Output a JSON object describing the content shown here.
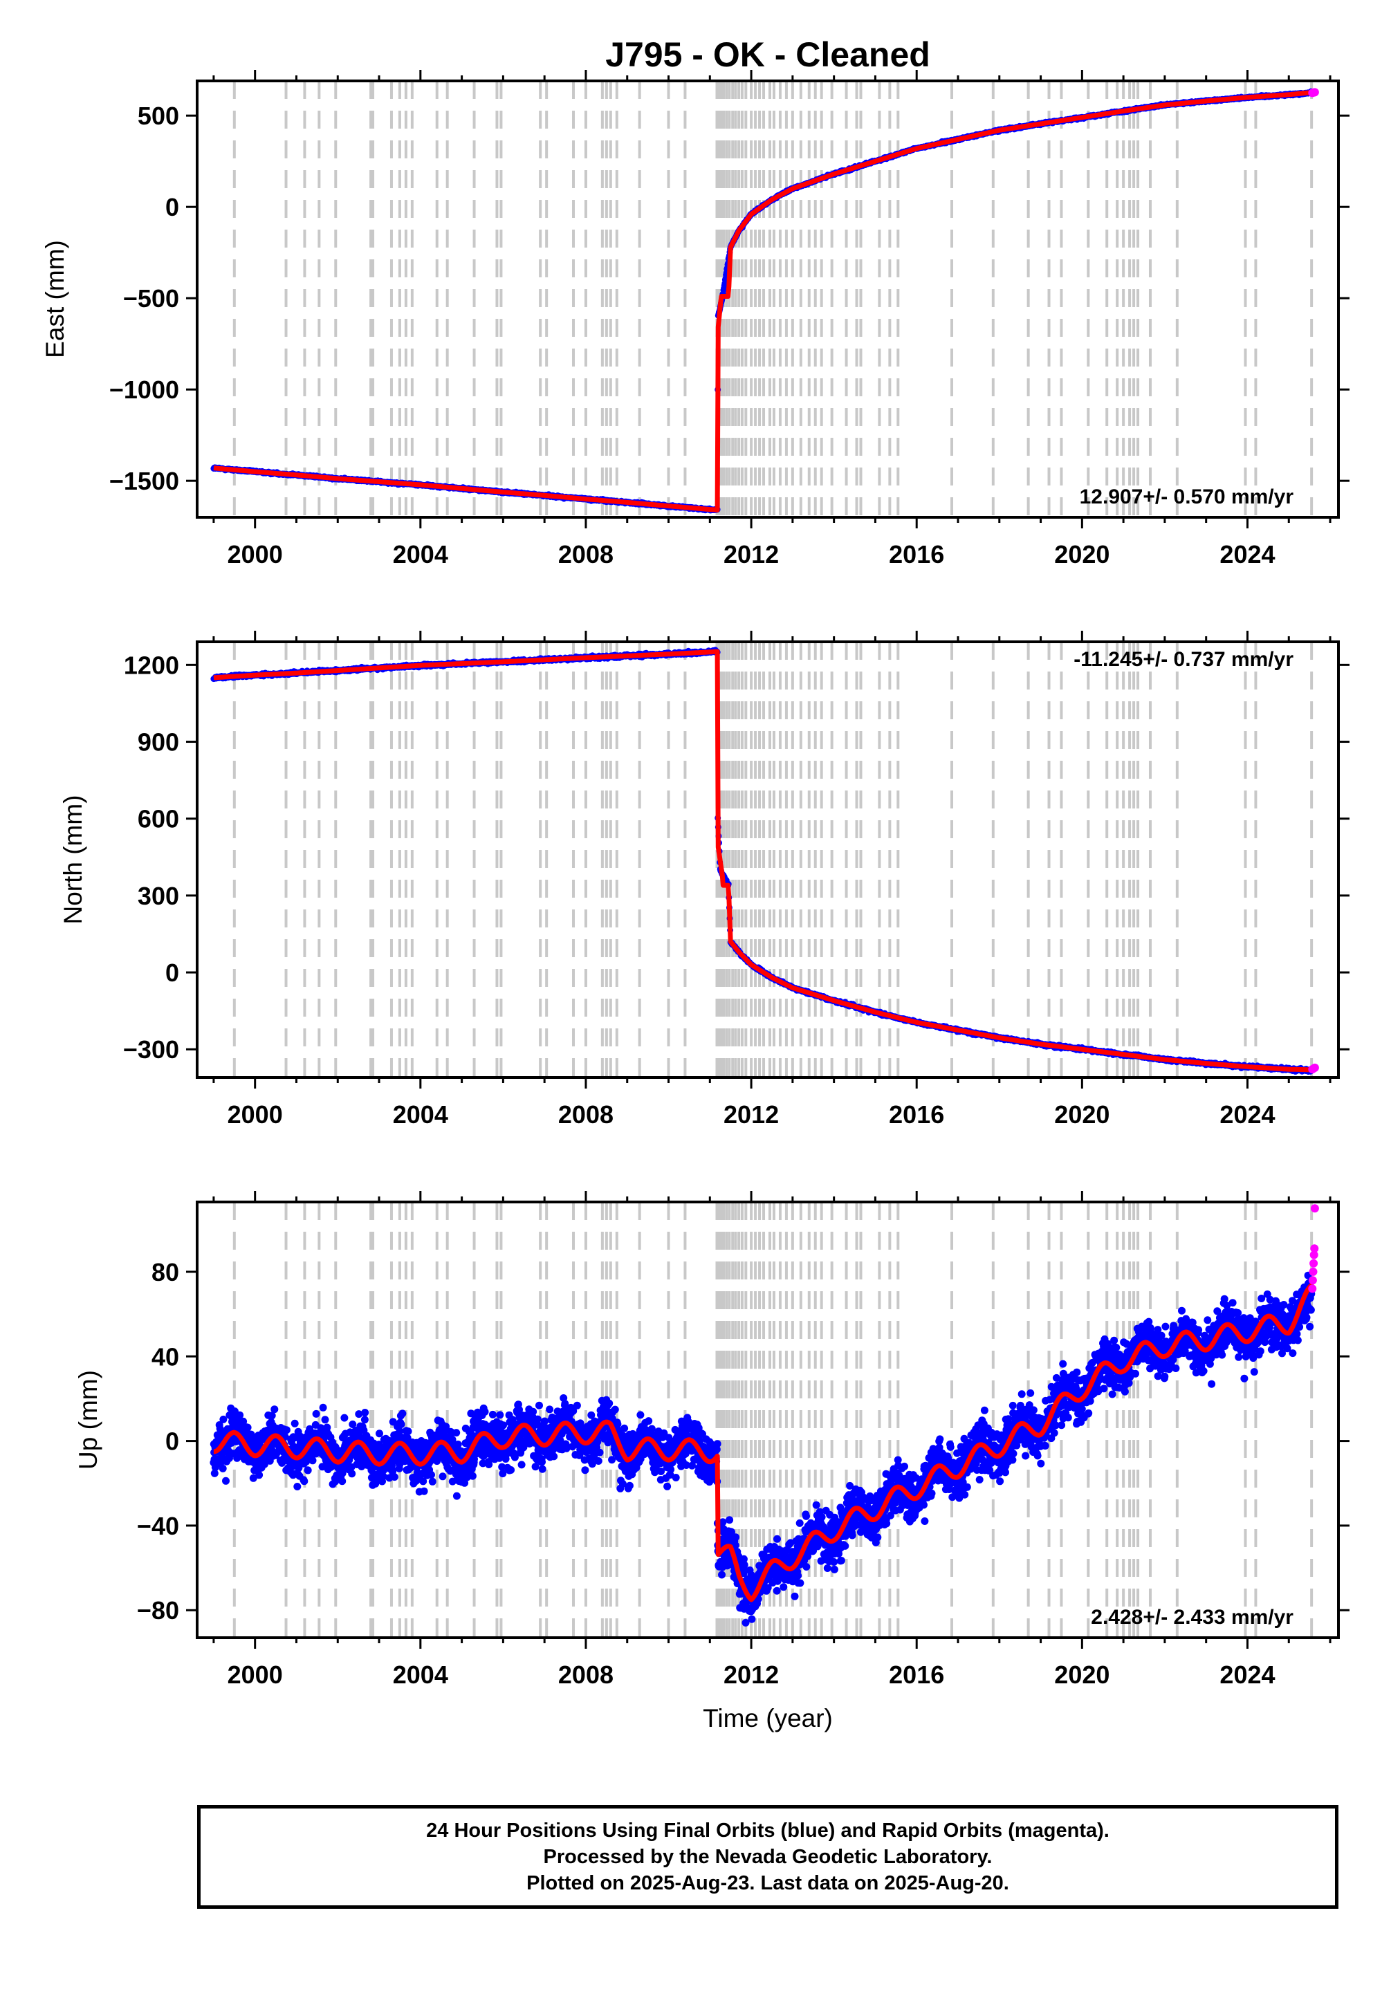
{
  "title": "J795  - OK - Cleaned",
  "colors": {
    "final_orbits": "#0000ff",
    "rapid_orbits": "#ff00ff",
    "model": "#ff0000",
    "event_lines": "#c8c8c8",
    "frame": "#000000"
  },
  "x_axis": {
    "label": "Time (year)",
    "range": [
      1998.6,
      2026.2
    ],
    "ticks": [
      2000,
      2004,
      2008,
      2012,
      2016,
      2020,
      2024
    ],
    "tick_labels": [
      "2000",
      "2004",
      "2008",
      "2012",
      "2016",
      "2020",
      "2024"
    ]
  },
  "event_lines_years": [
    1999.5,
    2000.75,
    2001.2,
    2001.55,
    2001.95,
    2002.8,
    2002.85,
    2003.3,
    2003.5,
    2003.65,
    2003.8,
    2004.4,
    2004.65,
    2005.3,
    2005.85,
    2005.95,
    2006.9,
    2007.05,
    2007.7,
    2008.0,
    2008.4,
    2008.5,
    2008.6,
    2008.75,
    2009.3,
    2010.0,
    2010.4,
    2011.17,
    2011.22,
    2011.27,
    2011.33,
    2011.4,
    2011.47,
    2011.55,
    2011.62,
    2011.7,
    2011.78,
    2011.87,
    2012.0,
    2012.1,
    2012.2,
    2012.3,
    2012.45,
    2012.55,
    2012.7,
    2012.85,
    2013.0,
    2013.2,
    2013.4,
    2013.55,
    2013.7,
    2013.95,
    2014.3,
    2014.55,
    2014.65,
    2015.1,
    2015.35,
    2015.55,
    2016.85,
    2017.85,
    2018.7,
    2019.2,
    2019.5,
    2020.15,
    2020.6,
    2020.85,
    2021.0,
    2021.15,
    2021.25,
    2021.35,
    2021.65,
    2022.3,
    2023.95,
    2024.2,
    2025.55
  ],
  "rates": {
    "east": "12.907+/- 0.570 mm/yr",
    "north": "-11.245+/- 0.737 mm/yr",
    "up": "2.428+/- 2.433 mm/yr"
  },
  "footer": {
    "line1": "24 Hour Positions Using Final Orbits (blue) and Rapid Orbits (magenta).",
    "line2": "Processed by the Nevada Geodetic Laboratory.",
    "line3": "Plotted on 2025-Aug-23. Last data on 2025-Aug-20."
  },
  "chart_data": [
    {
      "type": "scatter",
      "panel": "east",
      "ylabel": "East (mm)",
      "ylim": [
        -1700,
        690
      ],
      "yticks": [
        500,
        0,
        -500,
        -1000,
        -1500
      ],
      "ytick_labels": [
        "500",
        "0",
        "−500",
        "−1000",
        "−1500"
      ],
      "noise_mm": 4,
      "series": [
        {
          "role": "final",
          "x": [
            1999.0,
            2000.0,
            2001.0,
            2002.0,
            2003.0,
            2004.0,
            2005.0,
            2006.0,
            2007.0,
            2008.0,
            2009.0,
            2010.0,
            2010.9,
            2011.18,
            2011.19,
            2011.2,
            2011.3,
            2011.5,
            2011.7,
            2012.0,
            2012.5,
            2013.0,
            2014.0,
            2015.0,
            2016.0,
            2017.0,
            2018.0,
            2019.0,
            2020.0,
            2021.0,
            2022.0,
            2023.0,
            2024.0,
            2025.0,
            2025.55
          ],
          "y": [
            -1430,
            -1450,
            -1468,
            -1488,
            -1505,
            -1522,
            -1542,
            -1562,
            -1580,
            -1600,
            -1618,
            -1638,
            -1655,
            -1660,
            -1000,
            -600,
            -500,
            -220,
            -130,
            -40,
            40,
            100,
            180,
            250,
            320,
            370,
            420,
            455,
            490,
            525,
            558,
            580,
            600,
            615,
            625
          ]
        },
        {
          "role": "rapid",
          "x": [
            2025.57,
            2025.59,
            2025.61,
            2025.63
          ],
          "y": [
            624,
            626,
            627,
            628
          ]
        },
        {
          "role": "model",
          "x": [
            1999.0,
            2000.0,
            2001.0,
            2002.0,
            2003.0,
            2004.0,
            2005.0,
            2006.0,
            2007.0,
            2008.0,
            2009.0,
            2010.0,
            2011.18,
            2011.19,
            2011.27,
            2011.28,
            2011.45,
            2011.5,
            2011.7,
            2012.0,
            2012.5,
            2013.0,
            2014.0,
            2015.0,
            2016.0,
            2017.0,
            2018.0,
            2019.0,
            2020.0,
            2021.0,
            2022.0,
            2023.0,
            2024.0,
            2025.0,
            2025.6
          ],
          "y": [
            -1430,
            -1450,
            -1468,
            -1488,
            -1505,
            -1522,
            -1542,
            -1562,
            -1580,
            -1600,
            -1618,
            -1638,
            -1660,
            -680,
            -500,
            -490,
            -490,
            -220,
            -130,
            -40,
            40,
            100,
            180,
            250,
            320,
            370,
            420,
            455,
            490,
            525,
            558,
            580,
            600,
            615,
            628
          ]
        }
      ]
    },
    {
      "type": "scatter",
      "panel": "north",
      "ylabel": "North (mm)",
      "ylim": [
        -410,
        1290
      ],
      "yticks": [
        1200,
        900,
        600,
        300,
        0,
        -300
      ],
      "ytick_labels": [
        "1200",
        "900",
        "600",
        "300",
        "0",
        "−300"
      ],
      "noise_mm": 4,
      "series": [
        {
          "role": "final",
          "x": [
            1999.0,
            2000.0,
            2001.0,
            2002.0,
            2003.0,
            2004.0,
            2005.0,
            2006.0,
            2007.0,
            2008.0,
            2009.0,
            2010.0,
            2011.0,
            2011.18,
            2011.19,
            2011.25,
            2011.45,
            2011.5,
            2011.7,
            2012.0,
            2012.5,
            2013.0,
            2014.0,
            2015.0,
            2016.0,
            2017.0,
            2018.0,
            2019.0,
            2020.0,
            2021.0,
            2022.0,
            2023.0,
            2024.0,
            2025.0,
            2025.55
          ],
          "y": [
            1150,
            1160,
            1168,
            1178,
            1188,
            1198,
            1205,
            1212,
            1220,
            1228,
            1235,
            1242,
            1250,
            1252,
            600,
            400,
            340,
            120,
            80,
            30,
            -20,
            -60,
            -110,
            -155,
            -195,
            -225,
            -255,
            -280,
            -300,
            -320,
            -340,
            -355,
            -368,
            -378,
            -382
          ]
        },
        {
          "role": "rapid",
          "x": [
            2025.57,
            2025.6,
            2025.63
          ],
          "y": [
            -378,
            -375,
            -372
          ]
        },
        {
          "role": "model",
          "x": [
            1999.0,
            2000.0,
            2001.0,
            2002.0,
            2003.0,
            2004.0,
            2005.0,
            2006.0,
            2007.0,
            2008.0,
            2009.0,
            2010.0,
            2011.0,
            2011.18,
            2011.19,
            2011.3,
            2011.31,
            2011.45,
            2011.5,
            2011.7,
            2012.0,
            2012.5,
            2013.0,
            2014.0,
            2015.0,
            2016.0,
            2017.0,
            2018.0,
            2019.0,
            2020.0,
            2021.0,
            2022.0,
            2023.0,
            2024.0,
            2025.0,
            2025.6
          ],
          "y": [
            1150,
            1160,
            1168,
            1178,
            1188,
            1198,
            1205,
            1212,
            1220,
            1228,
            1235,
            1242,
            1250,
            1252,
            500,
            380,
            340,
            340,
            120,
            80,
            30,
            -20,
            -60,
            -110,
            -155,
            -195,
            -225,
            -255,
            -280,
            -300,
            -320,
            -340,
            -355,
            -368,
            -378,
            -380
          ]
        }
      ]
    },
    {
      "type": "scatter",
      "panel": "up",
      "ylabel": "Up (mm)",
      "ylim": [
        -93,
        113
      ],
      "yticks": [
        80,
        40,
        0,
        -40,
        -80
      ],
      "ytick_labels": [
        "80",
        "40",
        "0",
        "−40",
        "−80"
      ],
      "noise_mm": 8,
      "series": [
        {
          "role": "final",
          "x": [
            1999.0,
            2000.0,
            2001.0,
            2002.0,
            2003.0,
            2004.0,
            2005.0,
            2006.0,
            2007.0,
            2008.0,
            2008.6,
            2009.0,
            2010.0,
            2011.18,
            2011.19,
            2011.5,
            2011.7,
            2012.0,
            2012.5,
            2013.0,
            2014.0,
            2015.0,
            2016.0,
            2017.0,
            2018.0,
            2019.0,
            2020.0,
            2021.0,
            2022.0,
            2023.0,
            2024.0,
            2025.0,
            2025.55
          ],
          "y": [
            0,
            -2,
            -3,
            -5,
            -6,
            -6,
            -5,
            2,
            3,
            4,
            4,
            -4,
            -4,
            -5,
            -52,
            -55,
            -65,
            -70,
            -62,
            -55,
            -42,
            -32,
            -22,
            -12,
            -2,
            8,
            25,
            38,
            45,
            48,
            52,
            56,
            65
          ]
        },
        {
          "role": "rapid",
          "x": [
            2025.57,
            2025.58,
            2025.59,
            2025.6,
            2025.61,
            2025.62,
            2025.63
          ],
          "y": [
            72,
            76,
            80,
            84,
            88,
            91,
            110
          ]
        },
        {
          "role": "model",
          "x": [
            1999.0,
            2000.0,
            2001.0,
            2002.0,
            2003.0,
            2004.0,
            2005.0,
            2006.0,
            2007.0,
            2008.0,
            2008.6,
            2009.0,
            2010.0,
            2011.18,
            2011.19,
            2011.5,
            2011.7,
            2012.0,
            2012.5,
            2013.0,
            2014.0,
            2015.0,
            2016.0,
            2017.0,
            2018.0,
            2019.0,
            2020.0,
            2021.0,
            2022.0,
            2023.0,
            2024.0,
            2025.0,
            2025.6
          ],
          "y": [
            0,
            -2,
            -3,
            -5,
            -6,
            -6,
            -5,
            2,
            3,
            4,
            4,
            -4,
            -4,
            -5,
            -52,
            -55,
            -65,
            -70,
            -62,
            -55,
            -42,
            -32,
            -22,
            -12,
            -2,
            8,
            25,
            38,
            45,
            48,
            52,
            56,
            70
          ]
        }
      ]
    }
  ]
}
